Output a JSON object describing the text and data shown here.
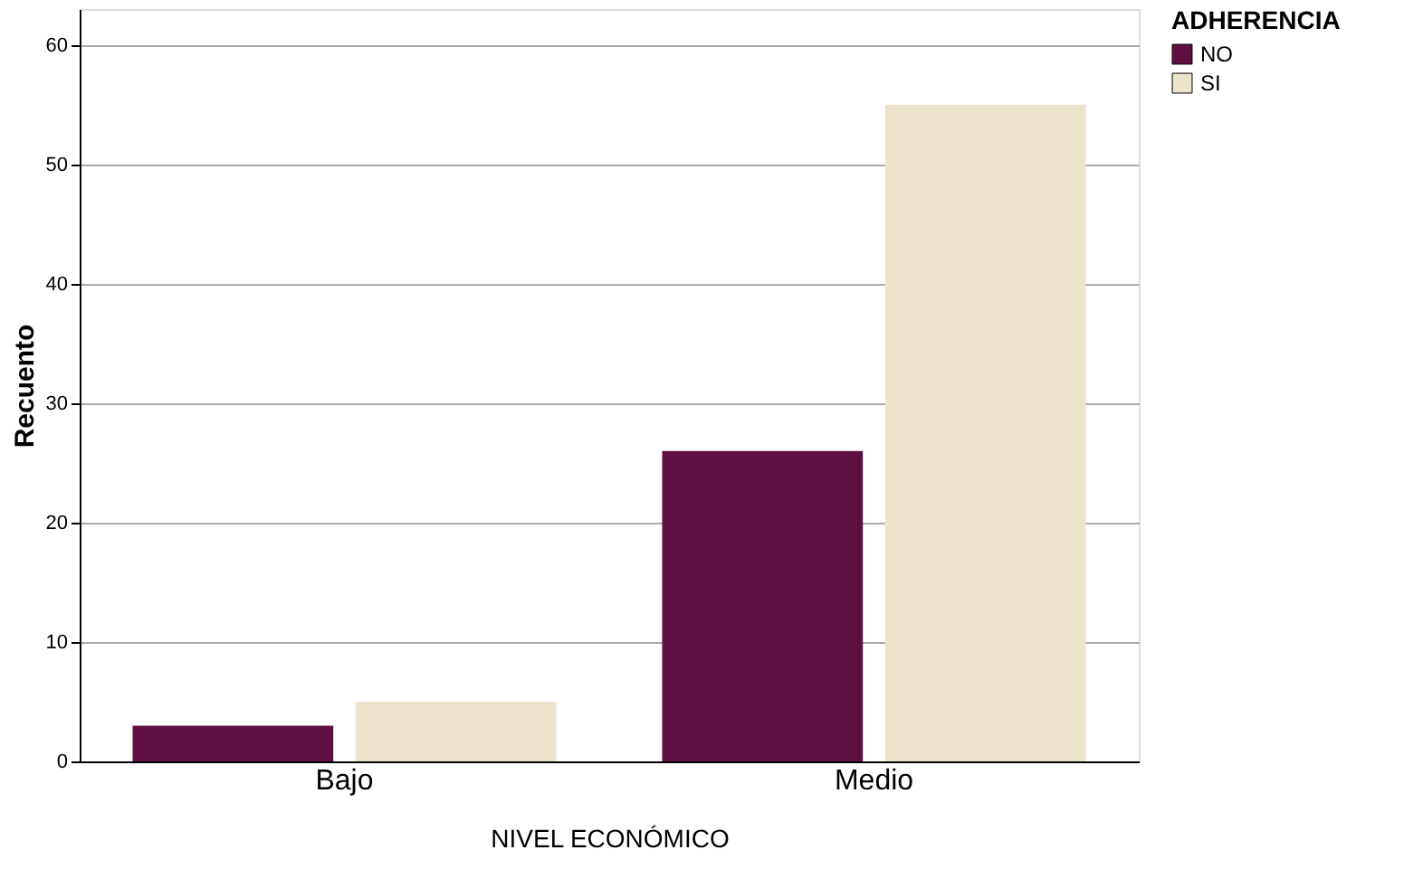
{
  "chart_data": {
    "type": "bar",
    "xlabel": "NIVEL ECONÓMICO",
    "ylabel": "Recuento",
    "legend_title": "ADHERENCIA",
    "categories": [
      "Bajo",
      "Medio"
    ],
    "series": [
      {
        "name": "NO",
        "color": "#5f1040",
        "values": [
          3,
          26
        ]
      },
      {
        "name": "SI",
        "color": "#ebe3cc",
        "values": [
          5,
          55
        ]
      }
    ],
    "ylim": [
      0,
      63
    ],
    "yticks": [
      0,
      10,
      20,
      30,
      40,
      50,
      60
    ],
    "grid": "y",
    "legend": "right"
  }
}
